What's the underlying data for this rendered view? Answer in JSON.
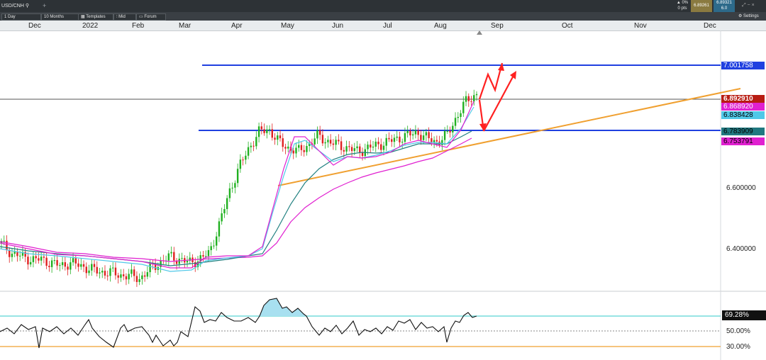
{
  "header": {
    "symbol": "USD/CNH",
    "quote_change": "▲ 0%",
    "quote_pts": "0 pts",
    "bid": "6.89261",
    "ask": "6.89321",
    "spread": "6.0",
    "settings_label": "Settings"
  },
  "toolbar": {
    "interval": "1 Day",
    "range": "10 Months",
    "templates": "Templates",
    "mid": "Mid",
    "forum": "Forum"
  },
  "date_axis": [
    "Dec",
    "2022",
    "Feb",
    "Mar",
    "Apr",
    "May",
    "Jun",
    "Jul",
    "Aug",
    "Sep",
    "Oct",
    "Nov",
    "Dec"
  ],
  "price_axis": {
    "ticks": [
      "6.600000",
      "6.400000"
    ]
  },
  "price_labels": {
    "resistance": "7.001758",
    "last": "6.892910",
    "ma_magenta_short": "6.868920",
    "ma_cyan": "6.838428",
    "support": "6.783909",
    "ma_magenta_long": "6.753791"
  },
  "rsi_axis": {
    "current": "69.28%",
    "mid": "50.00%",
    "low": "30.00%"
  },
  "colors": {
    "resistance": "#2040e0",
    "last": "#b81c12",
    "magenta": "#e020d0",
    "cyan": "#50c8e8",
    "support_box": "#207880",
    "trendline": "#f0a030",
    "arrow": "#ff2020",
    "up_candle": "#20b020",
    "down_candle": "#e02020"
  },
  "chart_data": {
    "type": "line",
    "title": "",
    "xlabel": "",
    "ylabel": "",
    "ylim": [
      6.27,
      7.09
    ],
    "x_ticks": [
      "Dec",
      "2022",
      "Feb",
      "Mar",
      "Apr",
      "May",
      "Jun",
      "Jul",
      "Aug",
      "Sep",
      "Oct",
      "Nov",
      "Dec"
    ],
    "series": [
      {
        "values": [
          6.42,
          6.39,
          6.38,
          6.37,
          6.37,
          6.36,
          6.35,
          6.36,
          6.35,
          6.34,
          6.33,
          6.33,
          6.32,
          6.32,
          6.31,
          6.34,
          6.36,
          6.38,
          6.37,
          6.36,
          6.37,
          6.39,
          6.48,
          6.58,
          6.66,
          6.72,
          6.77,
          6.78,
          6.74,
          6.72,
          6.71,
          6.73,
          6.76,
          6.74,
          6.73,
          6.72,
          6.71,
          6.72,
          6.73,
          6.74,
          6.75,
          6.76,
          6.77,
          6.75,
          6.74,
          6.76,
          6.82,
          6.87,
          6.89
        ]
      }
    ],
    "horizontal_lines": [
      7.001758,
      6.89291,
      6.783909
    ],
    "trendline": {
      "from": [
        6.64,
        "May"
      ],
      "to": [
        6.94,
        "Dec"
      ]
    },
    "rsi": {
      "levels": [
        69.28,
        50,
        30
      ],
      "current": 69.28
    }
  }
}
